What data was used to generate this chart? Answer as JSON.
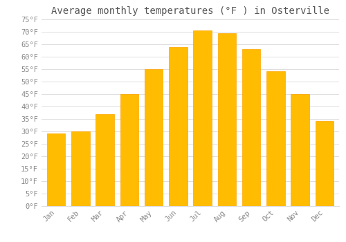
{
  "title": "Average monthly temperatures (°F ) in Osterville",
  "months": [
    "Jan",
    "Feb",
    "Mar",
    "Apr",
    "May",
    "Jun",
    "Jul",
    "Aug",
    "Sep",
    "Oct",
    "Nov",
    "Dec"
  ],
  "values": [
    29,
    30,
    37,
    45,
    55,
    64,
    70.5,
    69.5,
    63,
    54,
    45,
    34
  ],
  "bar_color": "#FFBC00",
  "bar_edge_color": "#FFA500",
  "background_color": "#FFFFFF",
  "grid_color": "#DDDDDD",
  "text_color": "#888888",
  "title_color": "#555555",
  "ylim": [
    0,
    75
  ],
  "ytick_step": 5,
  "title_fontsize": 10,
  "tick_fontsize": 7.5,
  "font_family": "monospace",
  "bar_width": 0.75
}
